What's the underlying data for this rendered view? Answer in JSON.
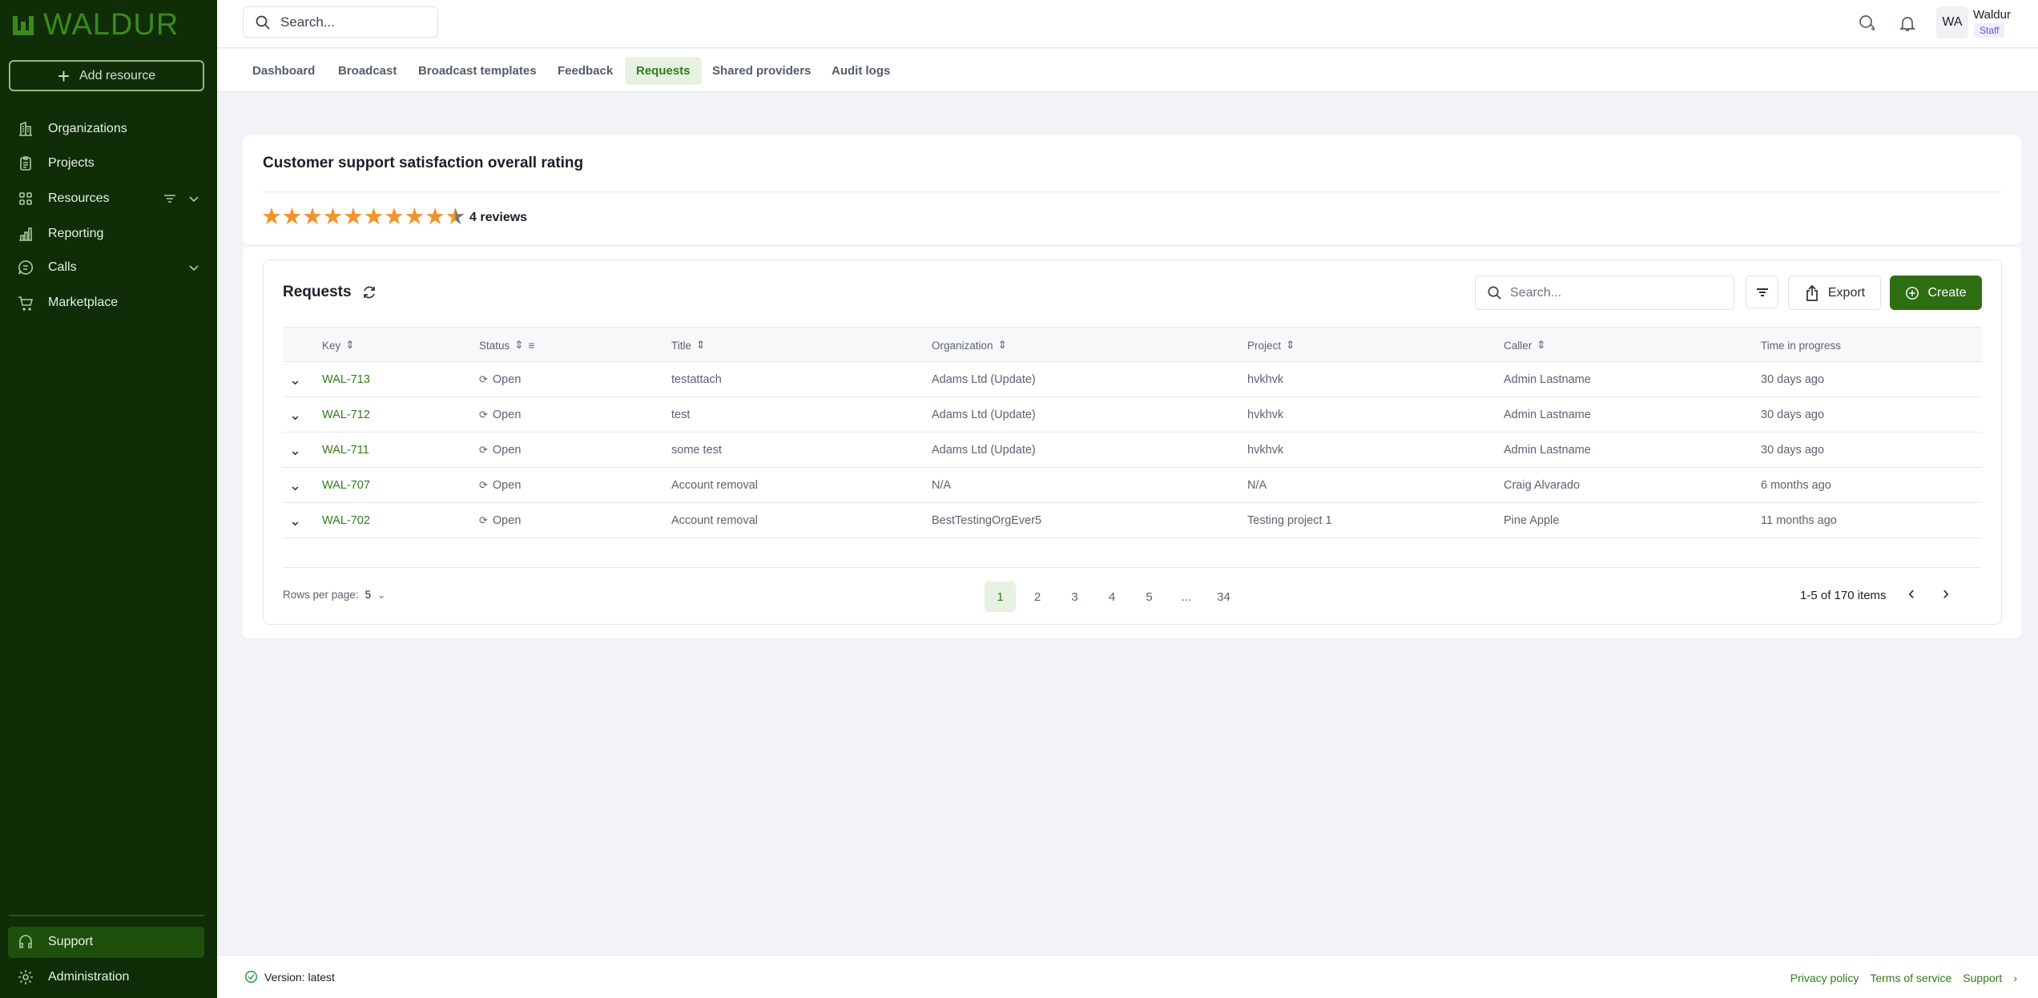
{
  "brand": {
    "name": "WALDUR"
  },
  "sidebar": {
    "add_resource": "Add resource",
    "items": [
      {
        "label": "Organizations"
      },
      {
        "label": "Projects"
      },
      {
        "label": "Resources"
      },
      {
        "label": "Reporting"
      },
      {
        "label": "Calls"
      },
      {
        "label": "Marketplace"
      }
    ],
    "bottom": [
      {
        "label": "Support",
        "active": true
      },
      {
        "label": "Administration"
      }
    ]
  },
  "header": {
    "search_placeholder": "Search...",
    "user": {
      "initials": "WA",
      "name": "Waldur",
      "role": "Staff"
    }
  },
  "tabs": [
    {
      "label": "Dashboard"
    },
    {
      "label": "Broadcast"
    },
    {
      "label": "Broadcast templates"
    },
    {
      "label": "Feedback"
    },
    {
      "label": "Requests",
      "active": true
    },
    {
      "label": "Shared providers"
    },
    {
      "label": "Audit logs"
    }
  ],
  "rating": {
    "title": "Customer support satisfaction overall rating",
    "stars_filled": 9.5,
    "stars_total": 10,
    "reviews": "4 reviews",
    "star_color": "#f5922a"
  },
  "requests": {
    "title": "Requests",
    "search_placeholder": "Search...",
    "export": "Export",
    "create": "Create",
    "columns": [
      "Key",
      "Status",
      "Title",
      "Organization",
      "Project",
      "Caller",
      "Time in progress"
    ],
    "rows": [
      {
        "key": "WAL-713",
        "status": "Open",
        "title": "testattach",
        "organization": "Adams Ltd (Update)",
        "project": "hvkhvk",
        "caller": "Admin Lastname",
        "time": "30 days ago"
      },
      {
        "key": "WAL-712",
        "status": "Open",
        "title": "test",
        "organization": "Adams Ltd (Update)",
        "project": "hvkhvk",
        "caller": "Admin Lastname",
        "time": "30 days ago"
      },
      {
        "key": "WAL-711",
        "status": "Open",
        "title": "some test",
        "organization": "Adams Ltd (Update)",
        "project": "hvkhvk",
        "caller": "Admin Lastname",
        "time": "30 days ago"
      },
      {
        "key": "WAL-707",
        "status": "Open",
        "title": "Account removal",
        "organization": "N/A",
        "project": "N/A",
        "caller": "Craig Alvarado",
        "time": "6 months ago"
      },
      {
        "key": "WAL-702",
        "status": "Open",
        "title": "Account removal",
        "organization": "BestTestingOrgEver5",
        "project": "Testing project 1",
        "caller": "Pine Apple",
        "time": "11 months ago"
      }
    ],
    "pagination": {
      "rows_per_page_label": "Rows per page:",
      "rows_per_page": "5",
      "pages": [
        "1",
        "2",
        "3",
        "4",
        "5",
        "...",
        "34"
      ],
      "current": "1",
      "summary": "1-5 of 170 items"
    }
  },
  "footer": {
    "version": "Version: latest",
    "links": [
      "Privacy policy",
      "Terms of service",
      "Support"
    ]
  },
  "colors": {
    "sidebar": "#0f2e07",
    "accent": "#2e7d18",
    "create_button": "#2e6e12"
  }
}
